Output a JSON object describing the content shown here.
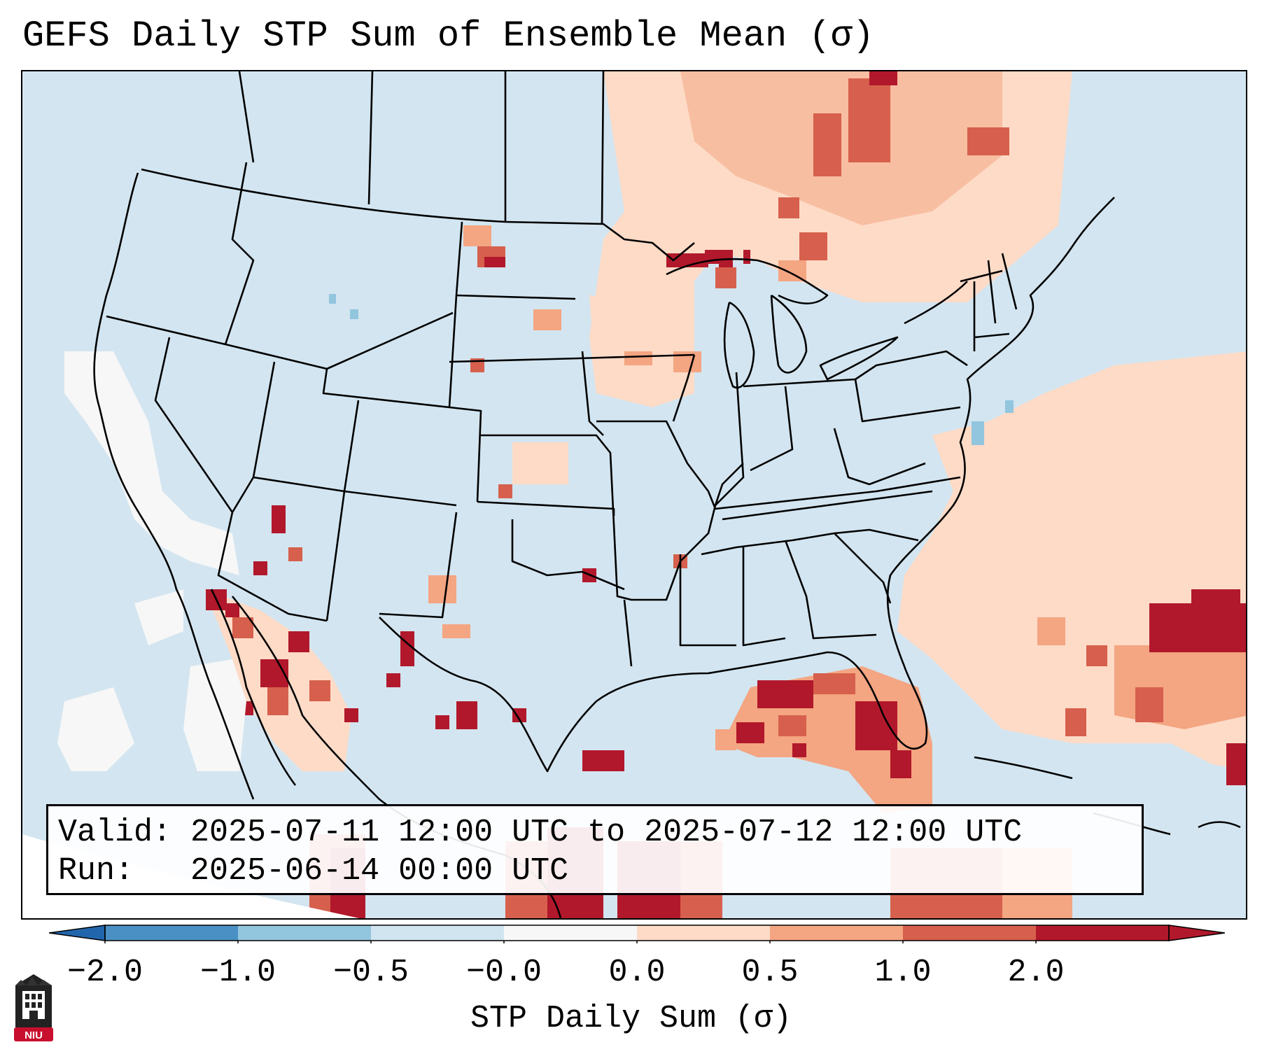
{
  "title": "GEFS Daily STP Sum of Ensemble Mean (σ)",
  "info": {
    "valid_label": "Valid:",
    "valid_value": "2025-07-11 12:00 UTC to 2025-07-12 12:00 UTC",
    "run_label": "Run:",
    "run_value": "2025-06-14 00:00 UTC"
  },
  "colorbar": {
    "label": "STP Daily Sum (σ)",
    "ticks": [
      "−2.0",
      "−1.0",
      "−0.5",
      "−0.0",
      "0.0",
      "0.5",
      "1.0",
      "2.0"
    ],
    "colors": [
      "#4a90c4",
      "#92c5de",
      "#d1e5f0",
      "#f7f7f7",
      "#fddbc7",
      "#f4a582",
      "#d6604d",
      "#b2182b"
    ],
    "extend_low_color": "#2166ac",
    "extend_high_color": "#b2182b"
  },
  "map": {
    "background_color": "#d3e5f0",
    "region": "CONUS and surrounding waters",
    "projection": "Lambert Conformal"
  },
  "logo_text": "NIU",
  "logo_color": "#c8102e"
}
